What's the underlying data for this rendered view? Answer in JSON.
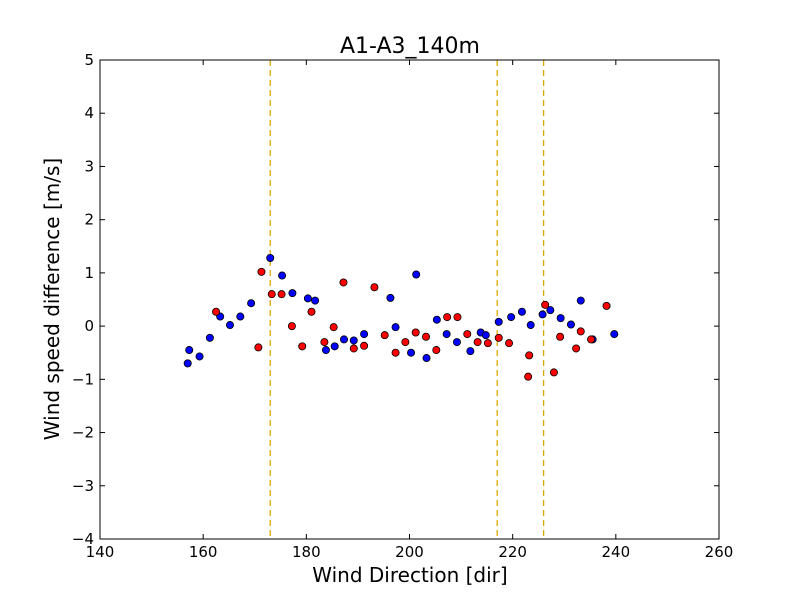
{
  "chart_data": {
    "type": "scatter",
    "title": "A1-A3_140m",
    "xlabel": "Wind Direction [dir]",
    "ylabel": "Wind speed difference [m/s]",
    "xlim": [
      140,
      260
    ],
    "ylim": [
      -4,
      5
    ],
    "xticks": [
      "140",
      "160",
      "180",
      "200",
      "220",
      "240",
      "260"
    ],
    "yticks": [
      "−4",
      "−3",
      "−2",
      "−1",
      "0",
      "1",
      "2",
      "3",
      "4",
      "5"
    ],
    "grid": false,
    "vlines": [
      173,
      217,
      226
    ],
    "vline_color": "#ddaa00",
    "series": [
      {
        "color": "#0000ff",
        "points": [
          [
            157,
            -0.7
          ],
          [
            157.3,
            -0.45
          ],
          [
            159.3,
            -0.57
          ],
          [
            161.3,
            -0.22
          ],
          [
            163.3,
            0.18
          ],
          [
            165.2,
            0.02
          ],
          [
            167.2,
            0.18
          ],
          [
            169.3,
            0.43
          ],
          [
            173,
            1.28
          ],
          [
            175.3,
            0.95
          ],
          [
            177.3,
            0.62
          ],
          [
            180.3,
            0.52
          ],
          [
            181.7,
            0.48
          ],
          [
            183.8,
            -0.45
          ],
          [
            185.5,
            -0.38
          ],
          [
            187.3,
            -0.25
          ],
          [
            189.2,
            -0.27
          ],
          [
            191.2,
            -0.15
          ],
          [
            196.3,
            0.53
          ],
          [
            197.3,
            -0.02
          ],
          [
            200.3,
            -0.5
          ],
          [
            201.3,
            0.97
          ],
          [
            203.3,
            -0.6
          ],
          [
            205.3,
            0.12
          ],
          [
            207.2,
            -0.15
          ],
          [
            209.2,
            -0.3
          ],
          [
            211.8,
            -0.47
          ],
          [
            213.8,
            -0.12
          ],
          [
            214.8,
            -0.17
          ],
          [
            217.3,
            0.08
          ],
          [
            219.7,
            0.17
          ],
          [
            221.8,
            0.27
          ],
          [
            223.5,
            0.02
          ],
          [
            225.8,
            0.22
          ],
          [
            227.3,
            0.3
          ],
          [
            229.3,
            0.15
          ],
          [
            231.3,
            0.03
          ],
          [
            233.2,
            0.48
          ],
          [
            235.5,
            -0.25
          ],
          [
            239.7,
            -0.15
          ]
        ]
      },
      {
        "color": "#ff0000",
        "points": [
          [
            162.5,
            0.27
          ],
          [
            170.7,
            -0.4
          ],
          [
            171.3,
            1.02
          ],
          [
            173.3,
            0.6
          ],
          [
            175.2,
            0.6
          ],
          [
            177.2,
            0.0
          ],
          [
            179.2,
            -0.38
          ],
          [
            181,
            0.27
          ],
          [
            183.5,
            -0.3
          ],
          [
            185.3,
            -0.02
          ],
          [
            187.2,
            0.82
          ],
          [
            189.2,
            -0.42
          ],
          [
            191.2,
            -0.37
          ],
          [
            193.2,
            0.73
          ],
          [
            195.2,
            -0.17
          ],
          [
            197.3,
            -0.5
          ],
          [
            199.2,
            -0.3
          ],
          [
            201.2,
            -0.12
          ],
          [
            203.2,
            -0.2
          ],
          [
            205.2,
            -0.45
          ],
          [
            207.3,
            0.17
          ],
          [
            209.3,
            0.17
          ],
          [
            211.2,
            -0.15
          ],
          [
            213.2,
            -0.3
          ],
          [
            215.2,
            -0.32
          ],
          [
            217.3,
            -0.22
          ],
          [
            219.3,
            -0.32
          ],
          [
            223.0,
            -0.95
          ],
          [
            223.2,
            -0.55
          ],
          [
            226.3,
            0.4
          ],
          [
            228,
            -0.87
          ],
          [
            229.2,
            -0.2
          ],
          [
            232.3,
            -0.42
          ],
          [
            233.2,
            -0.1
          ],
          [
            235.2,
            -0.25
          ],
          [
            238.2,
            0.38
          ]
        ]
      }
    ]
  }
}
